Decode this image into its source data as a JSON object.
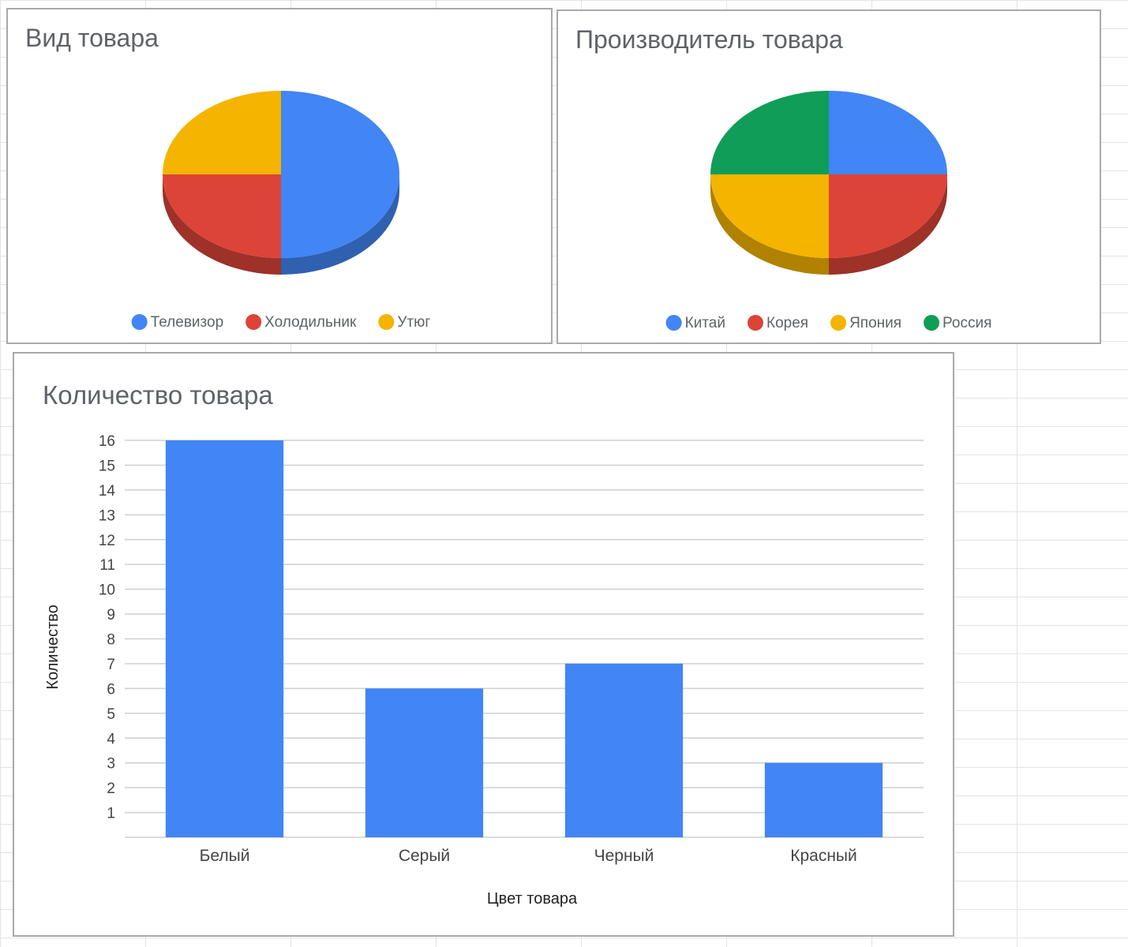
{
  "chart_data": [
    {
      "type": "pie",
      "title": "Вид товара",
      "categories": [
        "Телевизор",
        "Холодильник",
        "Утюг"
      ],
      "values": [
        50,
        25,
        25
      ],
      "colors": [
        "#4285f4",
        "#db4437",
        "#f4b400"
      ],
      "legend": "bottom"
    },
    {
      "type": "pie",
      "title": "Производитель товара",
      "categories": [
        "Китай",
        "Корея",
        "Япония",
        "Россия"
      ],
      "values": [
        25,
        25,
        25,
        25
      ],
      "colors": [
        "#4285f4",
        "#db4437",
        "#f4b400",
        "#0f9d58"
      ],
      "legend": "bottom"
    },
    {
      "type": "bar",
      "title": "Количество товара",
      "categories": [
        "Белый",
        "Серый",
        "Черный",
        "Красный"
      ],
      "values": [
        16,
        6,
        7,
        3
      ],
      "xlabel": "Цвет товара",
      "ylabel": "Количество",
      "ylim": [
        0,
        16
      ],
      "yticks": [
        1,
        2,
        3,
        4,
        5,
        6,
        7,
        8,
        9,
        10,
        11,
        12,
        13,
        14,
        15,
        16
      ],
      "grid": true,
      "color": "#4285f4"
    }
  ]
}
